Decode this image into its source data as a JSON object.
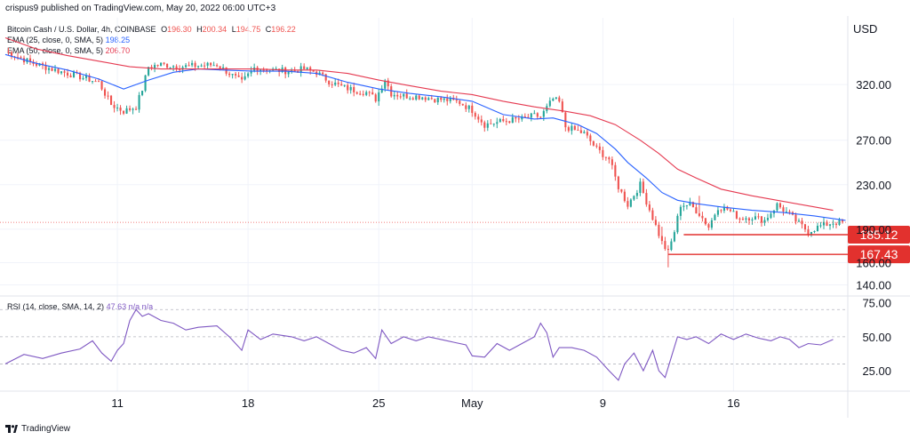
{
  "header": {
    "published": "crispus9 published on TradingView.com, May 20, 2022 06:00 UTC+3"
  },
  "legend": {
    "symbol": "Bitcoin Cash / U.S. Dollar, 4h, COINBASE",
    "o_label": "O",
    "o": "196.30",
    "h_label": "H",
    "h": "200.34",
    "l_label": "L",
    "l": "194.75",
    "c_label": "C",
    "c": "196.22",
    "ema25_label": "EMA (25, close, 0, SMA, 5)",
    "ema25": "198.25",
    "ema50_label": "EMA (50, close, 0, SMA, 5)",
    "ema50": "206.70",
    "rsi_label": "RSI (14, close, SMA, 14, 2)",
    "rsi": "47.63",
    "rsi_na": "n/a",
    "rsi_na2": "n/a"
  },
  "currency": "USD",
  "footer": {
    "brand": "TradingView"
  },
  "colors": {
    "up": "#26a69a",
    "down": "#ef5350",
    "ema25": "#2962ff",
    "ema50": "#e53950",
    "rsi": "#7e57c2",
    "grid": "#f0f3fa",
    "text": "#131722",
    "marker": "#e2312e"
  },
  "chart_data": [
    {
      "type": "candlestick",
      "title": "Bitcoin Cash / U.S. Dollar, 4h, COINBASE",
      "ylabel": "USD",
      "ylim": [
        130,
        380
      ],
      "y_ticks": [
        "320.00",
        "270.00",
        "230.00",
        "190.00",
        "160.00",
        "140.00"
      ],
      "y_tick_values": [
        320,
        270,
        230,
        190,
        160,
        140
      ],
      "x_ticks": [
        "11",
        "18",
        "25",
        "May",
        "9",
        "16"
      ],
      "x_tick_bar_index": [
        36,
        78,
        120,
        150,
        192,
        234
      ],
      "price_markers": [
        {
          "label": "185.12",
          "value": 185.12,
          "from_bar": 218
        },
        {
          "label": "167.43",
          "value": 167.43,
          "from_bar": 213
        }
      ],
      "last_close": 196.22,
      "close_path": [
        [
          0,
          350
        ],
        [
          8,
          340
        ],
        [
          16,
          333
        ],
        [
          24,
          327
        ],
        [
          30,
          322
        ],
        [
          34,
          302
        ],
        [
          38,
          296
        ],
        [
          42,
          300
        ],
        [
          44,
          316
        ],
        [
          46,
          336
        ],
        [
          50,
          338
        ],
        [
          56,
          336
        ],
        [
          62,
          337
        ],
        [
          68,
          338
        ],
        [
          72,
          330
        ],
        [
          76,
          322
        ],
        [
          80,
          335
        ],
        [
          86,
          333
        ],
        [
          92,
          332
        ],
        [
          96,
          334
        ],
        [
          100,
          331
        ],
        [
          104,
          323
        ],
        [
          108,
          318
        ],
        [
          112,
          315
        ],
        [
          116,
          313
        ],
        [
          119,
          307
        ],
        [
          122,
          325
        ],
        [
          124,
          312
        ],
        [
          128,
          310
        ],
        [
          134,
          309
        ],
        [
          138,
          307
        ],
        [
          142,
          306
        ],
        [
          146,
          304
        ],
        [
          150,
          297
        ],
        [
          154,
          284
        ],
        [
          158,
          286
        ],
        [
          162,
          288
        ],
        [
          166,
          289
        ],
        [
          170,
          292
        ],
        [
          172,
          291
        ],
        [
          176,
          307
        ],
        [
          178,
          304
        ],
        [
          180,
          282
        ],
        [
          184,
          278
        ],
        [
          186,
          276
        ],
        [
          190,
          262
        ],
        [
          194,
          253
        ],
        [
          197,
          228
        ],
        [
          200,
          212
        ],
        [
          204,
          230
        ],
        [
          206,
          215
        ],
        [
          209,
          193
        ],
        [
          211,
          178
        ],
        [
          213,
          169
        ],
        [
          215,
          188
        ],
        [
          217,
          212
        ],
        [
          220,
          212
        ],
        [
          223,
          204
        ],
        [
          226,
          192
        ],
        [
          229,
          210
        ],
        [
          232,
          208
        ],
        [
          236,
          200
        ],
        [
          240,
          201
        ],
        [
          244,
          198
        ],
        [
          248,
          212
        ],
        [
          252,
          203
        ],
        [
          255,
          195
        ],
        [
          258,
          188
        ],
        [
          262,
          193
        ],
        [
          266,
          196
        ]
      ],
      "series": [
        {
          "name": "EMA (25, close, 0, SMA, 5)",
          "last": 198.25,
          "values": [
            [
              0,
              347
            ],
            [
              10,
              339
            ],
            [
              20,
              333
            ],
            [
              30,
              325
            ],
            [
              38,
              316
            ],
            [
              46,
              324
            ],
            [
              54,
              331
            ],
            [
              62,
              334
            ],
            [
              70,
              333
            ],
            [
              80,
              332
            ],
            [
              90,
              332
            ],
            [
              100,
              330
            ],
            [
              110,
              322
            ],
            [
              120,
              316
            ],
            [
              130,
              312
            ],
            [
              140,
              309
            ],
            [
              150,
              305
            ],
            [
              160,
              293
            ],
            [
              170,
              289
            ],
            [
              176,
              290
            ],
            [
              184,
              284
            ],
            [
              190,
              276
            ],
            [
              196,
              262
            ],
            [
              200,
              250
            ],
            [
              206,
              236
            ],
            [
              211,
              223
            ],
            [
              216,
              216
            ],
            [
              222,
              213
            ],
            [
              230,
              210
            ],
            [
              240,
              207
            ],
            [
              250,
              205
            ],
            [
              260,
              202
            ],
            [
              270,
              198
            ]
          ]
        },
        {
          "name": "EMA (50, close, 0, SMA, 5)",
          "last": 206.7,
          "values": [
            [
              0,
              362
            ],
            [
              10,
              352
            ],
            [
              20,
              346
            ],
            [
              30,
              341
            ],
            [
              40,
              336
            ],
            [
              50,
              334
            ],
            [
              60,
              334
            ],
            [
              70,
              334
            ],
            [
              80,
              334
            ],
            [
              90,
              333
            ],
            [
              100,
              333
            ],
            [
              110,
              330
            ],
            [
              120,
              324
            ],
            [
              130,
              319
            ],
            [
              140,
              314
            ],
            [
              150,
              311
            ],
            [
              160,
              305
            ],
            [
              170,
              300
            ],
            [
              180,
              296
            ],
            [
              188,
              292
            ],
            [
              196,
              284
            ],
            [
              204,
              270
            ],
            [
              210,
              258
            ],
            [
              216,
              244
            ],
            [
              222,
              236
            ],
            [
              230,
              226
            ],
            [
              240,
              220
            ],
            [
              250,
              215
            ],
            [
              260,
              210
            ],
            [
              266,
              207
            ]
          ]
        }
      ]
    },
    {
      "type": "line",
      "title": "RSI (14, close, SMA, 14, 2)",
      "ylim": [
        10,
        80
      ],
      "y_ticks": [
        "75.00",
        "50.00",
        "25.00"
      ],
      "y_tick_values": [
        75,
        50,
        25
      ],
      "bands": [
        70,
        50,
        30
      ],
      "last": 47.63,
      "series": [
        {
          "name": "RSI",
          "values": [
            [
              0,
              30
            ],
            [
              6,
              37
            ],
            [
              12,
              34
            ],
            [
              18,
              38
            ],
            [
              24,
              41
            ],
            [
              28,
              47
            ],
            [
              31,
              38
            ],
            [
              34,
              32
            ],
            [
              36,
              40
            ],
            [
              38,
              45
            ],
            [
              40,
              62
            ],
            [
              42,
              70
            ],
            [
              44,
              65
            ],
            [
              46,
              67
            ],
            [
              50,
              62
            ],
            [
              54,
              60
            ],
            [
              58,
              55
            ],
            [
              62,
              57
            ],
            [
              68,
              58
            ],
            [
              72,
              50
            ],
            [
              76,
              40
            ],
            [
              78,
              55
            ],
            [
              82,
              48
            ],
            [
              86,
              52
            ],
            [
              92,
              50
            ],
            [
              96,
              47
            ],
            [
              100,
              50
            ],
            [
              104,
              45
            ],
            [
              108,
              40
            ],
            [
              112,
              38
            ],
            [
              116,
              42
            ],
            [
              119,
              34
            ],
            [
              121,
              55
            ],
            [
              124,
              45
            ],
            [
              128,
              50
            ],
            [
              132,
              47
            ],
            [
              136,
              50
            ],
            [
              140,
              48
            ],
            [
              144,
              46
            ],
            [
              148,
              44
            ],
            [
              150,
              36
            ],
            [
              154,
              35
            ],
            [
              158,
              45
            ],
            [
              162,
              40
            ],
            [
              166,
              45
            ],
            [
              170,
              50
            ],
            [
              172,
              60
            ],
            [
              174,
              53
            ],
            [
              176,
              35
            ],
            [
              178,
              42
            ],
            [
              182,
              42
            ],
            [
              186,
              40
            ],
            [
              190,
              35
            ],
            [
              194,
              25
            ],
            [
              197,
              18
            ],
            [
              199,
              30
            ],
            [
              202,
              38
            ],
            [
              205,
              25
            ],
            [
              208,
              40
            ],
            [
              210,
              25
            ],
            [
              212,
              20
            ],
            [
              214,
              35
            ],
            [
              216,
              50
            ],
            [
              219,
              48
            ],
            [
              222,
              50
            ],
            [
              226,
              45
            ],
            [
              230,
              52
            ],
            [
              234,
              48
            ],
            [
              238,
              52
            ],
            [
              242,
              49
            ],
            [
              246,
              47
            ],
            [
              249,
              50
            ],
            [
              252,
              48
            ],
            [
              255,
              42
            ],
            [
              258,
              45
            ],
            [
              262,
              44
            ],
            [
              266,
              48
            ]
          ]
        }
      ]
    }
  ]
}
